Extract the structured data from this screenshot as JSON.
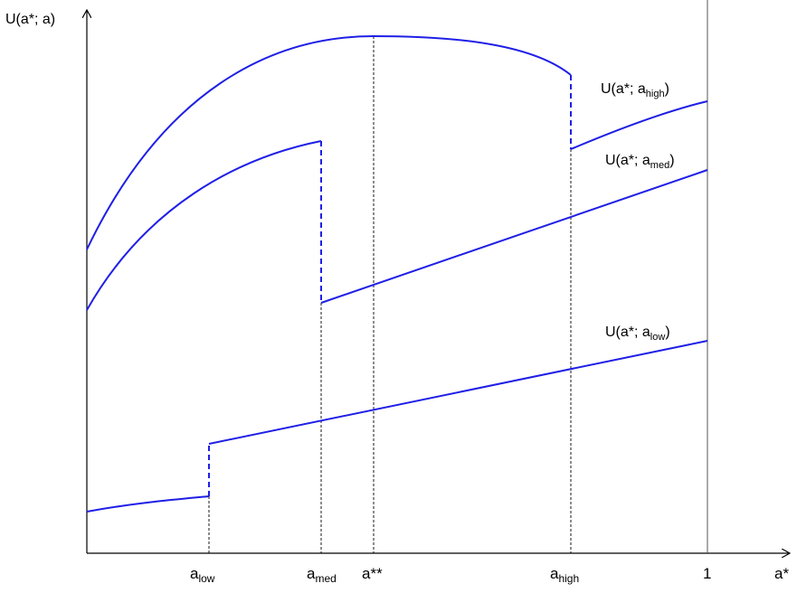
{
  "axes": {
    "y_label": "U(a*; a)",
    "x_label": "a*",
    "x_ticks": {
      "a_low": {
        "base": "a",
        "sub": "low"
      },
      "a_med": {
        "base": "a",
        "sub": "med"
      },
      "a_star_star": "a**",
      "a_high": {
        "base": "a",
        "sub": "high"
      },
      "one": "1"
    }
  },
  "curves": {
    "high": {
      "prefix": "U(a*; a",
      "sub": "high",
      "suffix": ")"
    },
    "med": {
      "prefix": "U(a*; a",
      "sub": "med",
      "suffix": ")"
    },
    "low": {
      "prefix": "U(a*; a",
      "sub": "low",
      "suffix": ")"
    }
  },
  "colors": {
    "curve": "#1f1fe6",
    "axis": "#000000",
    "guide": "#000000",
    "boundary": "#555555"
  }
}
